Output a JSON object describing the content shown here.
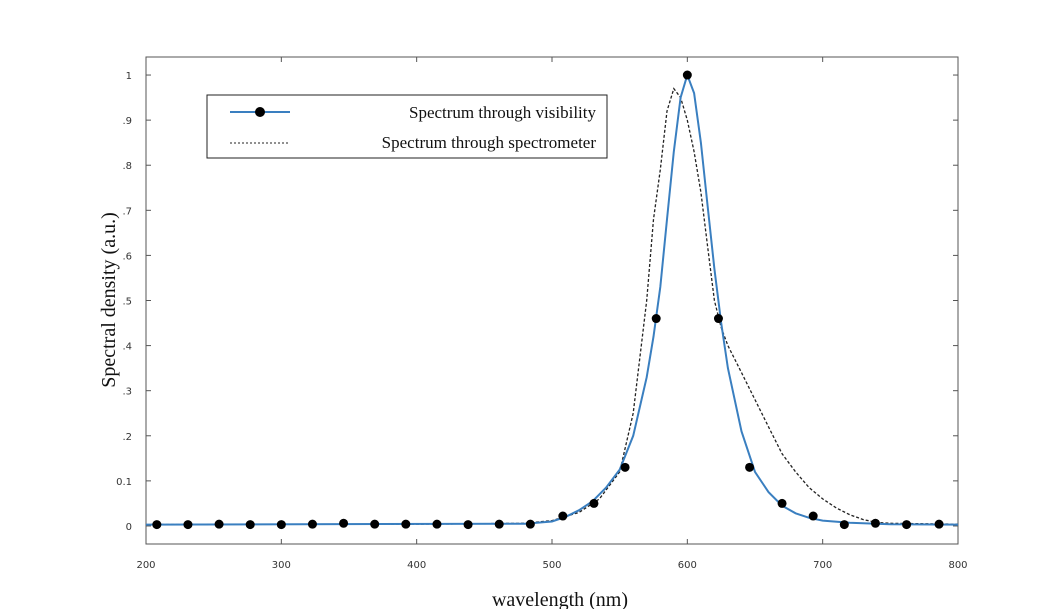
{
  "chart_data": {
    "type": "line",
    "title": "",
    "xlabel": "wavelength (nm)",
    "ylabel": "Spectral density (a.u.)",
    "xlim": [
      200,
      800
    ],
    "ylim": [
      -0.04,
      1.04
    ],
    "x_ticks": [
      200,
      300,
      400,
      500,
      600,
      700,
      800
    ],
    "x_tick_labels": [
      "200",
      "300",
      "400",
      "500",
      "600",
      "700",
      "800"
    ],
    "y_ticks": [
      0,
      0.1,
      0.2,
      0.3,
      0.4,
      0.5,
      0.6,
      0.7,
      0.8,
      0.9,
      1
    ],
    "y_tick_labels": [
      "0",
      "0.1",
      ".2",
      ".3",
      ".4",
      ".5",
      ".6",
      ".7",
      ".8",
      ".9",
      "1"
    ],
    "grid": false,
    "legend_position": "top-left",
    "series": [
      {
        "name": "Spectrum through visibility",
        "style": "solid-with-markers",
        "color": "#3a7fc0",
        "marker_color": "#000000",
        "x": [
          200,
          480,
          500,
          510,
          520,
          530,
          540,
          550,
          560,
          570,
          575,
          580,
          585,
          590,
          595,
          600,
          605,
          610,
          615,
          620,
          625,
          630,
          640,
          650,
          660,
          670,
          680,
          690,
          700,
          720,
          750,
          800
        ],
        "y": [
          0.003,
          0.005,
          0.01,
          0.02,
          0.035,
          0.055,
          0.085,
          0.125,
          0.2,
          0.33,
          0.42,
          0.53,
          0.68,
          0.83,
          0.95,
          1.0,
          0.96,
          0.85,
          0.71,
          0.57,
          0.45,
          0.35,
          0.21,
          0.12,
          0.075,
          0.045,
          0.028,
          0.018,
          0.012,
          0.007,
          0.004,
          0.003
        ],
        "markers_x": [
          208,
          231,
          254,
          277,
          300,
          323,
          346,
          369,
          392,
          415,
          438,
          461,
          484,
          508,
          531,
          554,
          577,
          600,
          623,
          646,
          670,
          693,
          716,
          739,
          762,
          786
        ],
        "markers_y": [
          0.003,
          0.003,
          0.004,
          0.003,
          0.003,
          0.004,
          0.006,
          0.004,
          0.004,
          0.004,
          0.003,
          0.004,
          0.004,
          0.022,
          0.05,
          0.13,
          0.46,
          1.0,
          0.46,
          0.13,
          0.05,
          0.022,
          0.003,
          0.006,
          0.003,
          0.004
        ]
      },
      {
        "name": "Spectrum through spectrometer",
        "style": "dashed",
        "color": "#222222",
        "x": [
          200,
          300,
          400,
          480,
          500,
          520,
          535,
          550,
          560,
          570,
          575,
          580,
          585,
          590,
          595,
          600,
          605,
          610,
          615,
          620,
          625,
          630,
          640,
          650,
          660,
          670,
          680,
          690,
          700,
          710,
          720,
          730,
          740,
          750,
          800
        ],
        "y": [
          0.003,
          0.004,
          0.004,
          0.006,
          0.012,
          0.03,
          0.06,
          0.12,
          0.25,
          0.5,
          0.68,
          0.79,
          0.92,
          0.97,
          0.95,
          0.9,
          0.83,
          0.74,
          0.62,
          0.5,
          0.44,
          0.4,
          0.34,
          0.28,
          0.22,
          0.16,
          0.12,
          0.085,
          0.06,
          0.04,
          0.025,
          0.014,
          0.008,
          0.006,
          0.004
        ]
      }
    ]
  }
}
